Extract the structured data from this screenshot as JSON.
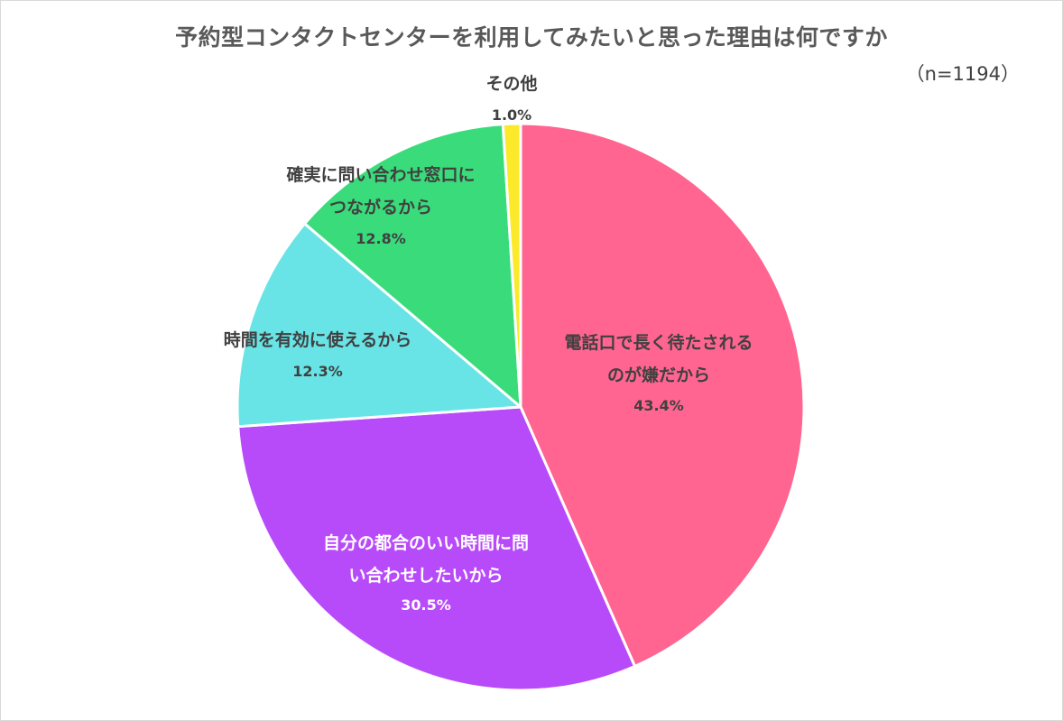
{
  "chart_data": {
    "type": "pie",
    "title": "予約型コンタクトセンターを利用してみたいと思った理由は何ですか",
    "subtitle": "（n=1194）",
    "slices": [
      {
        "label": [
          "電話口で長く待たされる",
          "のが嫌だから"
        ],
        "value": 43.4,
        "value_label": "43.4%",
        "color": "#ff6590",
        "text_color": "#404040"
      },
      {
        "label": [
          "自分の都合のいい時間に問",
          "い合わせしたいから"
        ],
        "value": 30.5,
        "value_label": "30.5%",
        "color": "#b84bf9",
        "text_color": "#ffffff"
      },
      {
        "label": [
          "時間を有効に使えるから"
        ],
        "value": 12.3,
        "value_label": "12.3%",
        "color": "#68e4e6",
        "text_color": "#404040"
      },
      {
        "label": [
          "確実に問い合わせ窓口に",
          "つながるから"
        ],
        "value": 12.8,
        "value_label": "12.8%",
        "color": "#3adb7b",
        "text_color": "#404040"
      },
      {
        "label": [
          "その他"
        ],
        "value": 1.0,
        "value_label": "1.0%",
        "color": "#fbe92a",
        "text_color": "#404040"
      }
    ],
    "start": "12 o'clock",
    "direction": "clockwise",
    "legend": "none"
  }
}
